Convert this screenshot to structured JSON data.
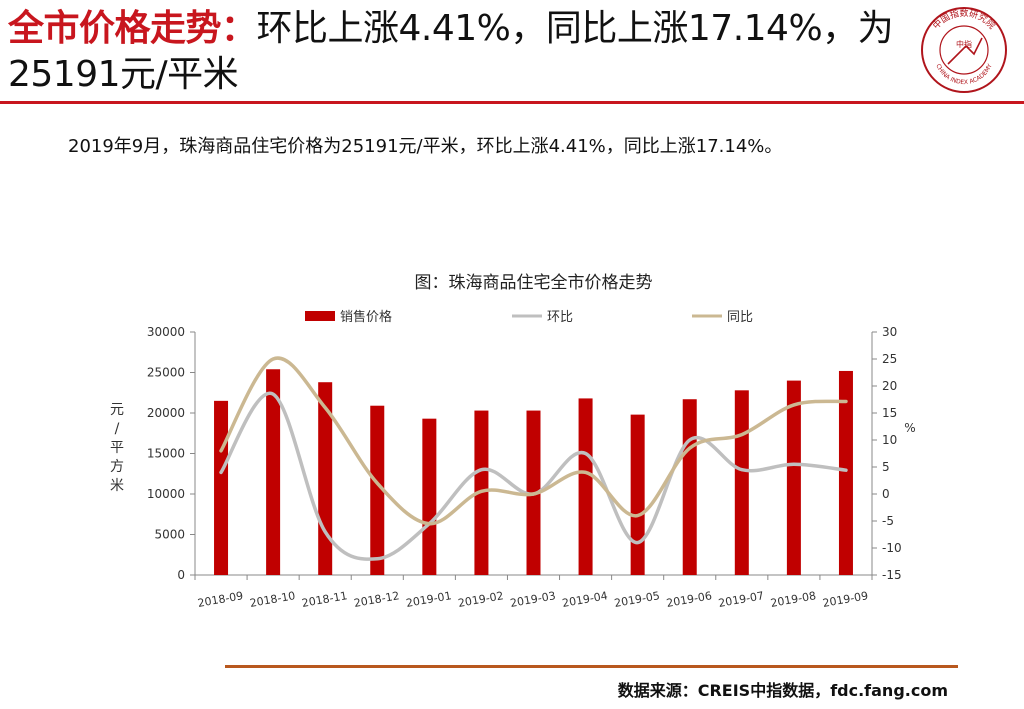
{
  "header": {
    "title_highlight": "全市价格走势：",
    "title_rest": "环比上涨4.41%，同比上涨17.14%，为25191元/平米"
  },
  "logo": {
    "ring_text": "中国指数研究院",
    "ring_text_en": "CHINA INDEX ACADEMY",
    "center_text": "中指"
  },
  "summary": "2019年9月，珠海商品住宅价格为25191元/平米，环比上涨4.41%，同比上涨17.14%。",
  "colors": {
    "accent": "#c8161e",
    "bar": "#c00000",
    "mom": "#bfbfbf",
    "yoy": "#cbb892",
    "footer_rule": "#b8581e"
  },
  "chart_data": {
    "type": "bar",
    "title": "图：珠海商品住宅全市价格走势",
    "categories": [
      "2018-09",
      "2018-10",
      "2018-11",
      "2018-12",
      "2019-01",
      "2019-02",
      "2019-03",
      "2019-04",
      "2019-05",
      "2019-06",
      "2019-07",
      "2019-08",
      "2019-09"
    ],
    "series": [
      {
        "name": "销售价格",
        "type": "bar",
        "axis": "left",
        "color": "#c00000",
        "values": [
          21500,
          25400,
          23800,
          20900,
          19300,
          20300,
          20300,
          21800,
          19800,
          21700,
          22800,
          24000,
          25191
        ]
      },
      {
        "name": "环比",
        "type": "line",
        "axis": "right",
        "color": "#bfbfbf",
        "values": [
          4,
          18.5,
          -7,
          -12,
          -5.5,
          4.5,
          0,
          7.5,
          -9,
          10,
          4.5,
          5.5,
          4.41
        ]
      },
      {
        "name": "同比",
        "type": "line",
        "axis": "right",
        "color": "#cbb892",
        "values": [
          8,
          25,
          16,
          2,
          -5.5,
          0.5,
          0,
          4,
          -4,
          8.5,
          11,
          16.5,
          17.14
        ]
      }
    ],
    "ylabel": "元/平方米",
    "y2label": "%",
    "ylim": [
      0,
      30000
    ],
    "y_ticks": [
      0,
      5000,
      10000,
      15000,
      20000,
      25000,
      30000
    ],
    "y2lim": [
      -15,
      30
    ],
    "y2_ticks": [
      -15,
      -10,
      -5,
      0,
      5,
      10,
      15,
      20,
      25,
      30
    ],
    "legend_position": "top",
    "grid": false
  },
  "source": "数据来源：CREIS中指数据，fdc.fang.com"
}
